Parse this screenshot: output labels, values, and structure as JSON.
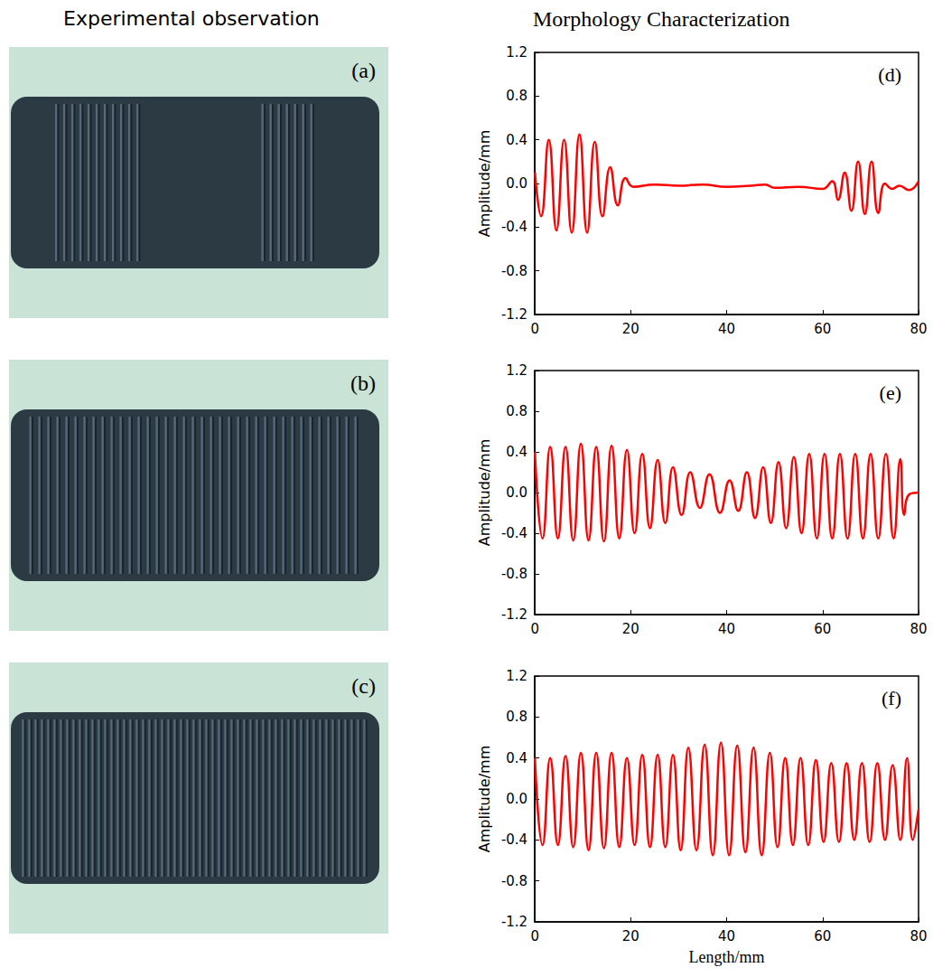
{
  "headings": [
    "Experimental observation",
    "Morphology Characterization"
  ],
  "photos": [
    {
      "label": "(a)"
    },
    {
      "label": "(b)"
    },
    {
      "label": "(c)"
    }
  ],
  "chart_data": [
    {
      "type": "line",
      "panel": "(d)",
      "ylabel": "Amplitude/mm",
      "color": "#ff0000",
      "grid": false,
      "xlim": [
        0,
        80
      ],
      "xticks": [
        0,
        20,
        40,
        60,
        80
      ],
      "ylim": [
        -1.2,
        1.2
      ],
      "yticks": [
        -1.2,
        -0.8,
        -0.4,
        {
          "value": 0,
          "label": "0.0"
        },
        0.4,
        0.8,
        1.2
      ],
      "x": [
        0,
        1.3,
        2.9,
        4.5,
        6.1,
        7.7,
        9.3,
        10.9,
        12.5,
        14.1,
        15.7,
        17.3,
        18.9,
        20.5,
        25,
        30,
        35,
        40,
        45,
        48,
        50,
        55,
        60,
        62,
        63.2,
        64.6,
        66,
        67.4,
        68.8,
        70.2,
        71.6,
        73,
        74.5,
        76,
        78,
        80
      ],
      "values": [
        0.1,
        -0.3,
        0.4,
        -0.43,
        0.4,
        -0.45,
        0.45,
        -0.45,
        0.38,
        -0.3,
        0.15,
        -0.2,
        0.05,
        -0.03,
        -0.01,
        -0.02,
        -0.01,
        -0.03,
        -0.02,
        -0.01,
        -0.04,
        -0.03,
        -0.05,
        0.02,
        -0.15,
        0.1,
        -0.25,
        0.2,
        -0.28,
        0.2,
        -0.27,
        0.0,
        -0.05,
        -0.02,
        -0.06,
        0.02
      ]
    },
    {
      "type": "line",
      "panel": "(e)",
      "ylabel": "Amplitude/mm",
      "color": "#ff0000",
      "grid": false,
      "xlim": [
        0,
        80
      ],
      "xticks": [
        0,
        20,
        40,
        60,
        80
      ],
      "ylim": [
        -1.2,
        1.2
      ],
      "yticks": [
        -1.2,
        -0.8,
        -0.4,
        {
          "value": 0,
          "label": "0.0"
        },
        0.4,
        0.8,
        1.2
      ],
      "x": [
        0,
        1.6,
        3.2,
        4.8,
        6.4,
        8,
        9.6,
        11.2,
        12.8,
        14.4,
        16,
        17.6,
        19.2,
        20.8,
        22.4,
        24,
        25.6,
        27.2,
        28.8,
        30.6,
        32.4,
        34.4,
        36.4,
        38.6,
        40.6,
        42.4,
        44.2,
        45.9,
        47.6,
        49.2,
        50.8,
        52.4,
        54,
        55.6,
        57.2,
        58.8,
        60.4,
        62,
        63.6,
        65.2,
        66.8,
        68.4,
        70,
        71.6,
        73.2,
        74.8,
        76.2,
        77,
        78,
        80
      ],
      "values": [
        0.4,
        -0.45,
        0.45,
        -0.45,
        0.45,
        -0.47,
        0.48,
        -0.47,
        0.45,
        -0.48,
        0.46,
        -0.45,
        0.42,
        -0.4,
        0.38,
        -0.35,
        0.32,
        -0.3,
        0.25,
        -0.22,
        0.2,
        -0.15,
        0.18,
        -0.2,
        0.12,
        -0.18,
        0.2,
        -0.25,
        0.25,
        -0.3,
        0.3,
        -0.35,
        0.35,
        -0.4,
        0.38,
        -0.45,
        0.38,
        -0.45,
        0.38,
        -0.45,
        0.38,
        -0.45,
        0.38,
        -0.45,
        0.38,
        -0.45,
        0.33,
        -0.22,
        -0.02,
        0
      ]
    },
    {
      "type": "line",
      "panel": "(f)",
      "ylabel": "Amplitude/mm",
      "xlabel": "Length/mm",
      "color": "#ff0000",
      "grid": false,
      "xlim": [
        0,
        80
      ],
      "xticks": [
        0,
        20,
        40,
        60,
        80
      ],
      "ylim": [
        -1.2,
        1.2
      ],
      "yticks": [
        -1.2,
        -0.8,
        -0.4,
        {
          "value": 0,
          "label": "0.0"
        },
        0.4,
        0.8,
        1.2
      ],
      "x": [
        0,
        1.6,
        3.2,
        4.8,
        6.4,
        8,
        9.6,
        11.2,
        12.8,
        14.4,
        16,
        17.6,
        19.2,
        20.8,
        22.4,
        24,
        25.6,
        27.2,
        28.8,
        30.4,
        32,
        33.7,
        35.4,
        37.1,
        38.8,
        40.5,
        42.2,
        43.9,
        45.6,
        47.3,
        49,
        50.6,
        52.2,
        53.8,
        55.4,
        57,
        58.6,
        60.2,
        61.8,
        63.4,
        65,
        66.6,
        68.2,
        69.8,
        71.4,
        73,
        74.6,
        76.2,
        77.6,
        78.8,
        80
      ],
      "values": [
        0.4,
        -0.45,
        0.4,
        -0.45,
        0.42,
        -0.47,
        0.45,
        -0.5,
        0.45,
        -0.48,
        0.45,
        -0.47,
        0.4,
        -0.45,
        0.43,
        -0.47,
        0.43,
        -0.47,
        0.43,
        -0.5,
        0.5,
        -0.5,
        0.53,
        -0.55,
        0.55,
        -0.55,
        0.52,
        -0.52,
        0.5,
        -0.55,
        0.45,
        -0.47,
        0.4,
        -0.45,
        0.4,
        -0.45,
        0.38,
        -0.42,
        0.35,
        -0.42,
        0.35,
        -0.4,
        0.35,
        -0.42,
        0.35,
        -0.4,
        0.33,
        -0.4,
        0.4,
        -0.4,
        -0.1
      ]
    }
  ]
}
